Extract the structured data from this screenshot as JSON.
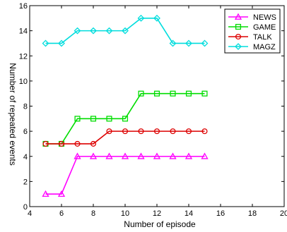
{
  "chart_data": {
    "type": "line",
    "title": "",
    "xlabel": "Number of episode",
    "ylabel": "Number of repeated events",
    "xlim": [
      4,
      20
    ],
    "ylim": [
      0,
      16
    ],
    "xticks": [
      4,
      6,
      8,
      10,
      12,
      14,
      16,
      18,
      20
    ],
    "yticks": [
      0,
      2,
      4,
      6,
      8,
      10,
      12,
      14,
      16
    ],
    "xtick_labels": [
      "4",
      "6",
      "8",
      "10",
      "12",
      "14",
      "16",
      "18",
      "20"
    ],
    "ytick_labels": [
      "0",
      "2",
      "4",
      "6",
      "8",
      "10",
      "12",
      "14",
      "16"
    ],
    "grid": false,
    "legend_position": "top-right",
    "x": [
      5,
      6,
      7,
      8,
      9,
      10,
      11,
      12,
      13,
      14,
      15
    ],
    "series": [
      {
        "name": "NEWS",
        "color": "#ff00ff",
        "marker": "triangle",
        "values": [
          1,
          1,
          4,
          4,
          4,
          4,
          4,
          4,
          4,
          4,
          4
        ]
      },
      {
        "name": "GAME",
        "color": "#00dd00",
        "marker": "square",
        "values": [
          5,
          5,
          7,
          7,
          7,
          7,
          9,
          9,
          9,
          9,
          9
        ]
      },
      {
        "name": "TALK",
        "color": "#dd0000",
        "marker": "circle",
        "values": [
          5,
          5,
          5,
          5,
          6,
          6,
          6,
          6,
          6,
          6,
          6
        ]
      },
      {
        "name": "MAGZ",
        "color": "#00dddd",
        "marker": "diamond",
        "values": [
          13,
          13,
          14,
          14,
          14,
          14,
          15,
          15,
          13,
          13,
          13
        ]
      }
    ]
  }
}
